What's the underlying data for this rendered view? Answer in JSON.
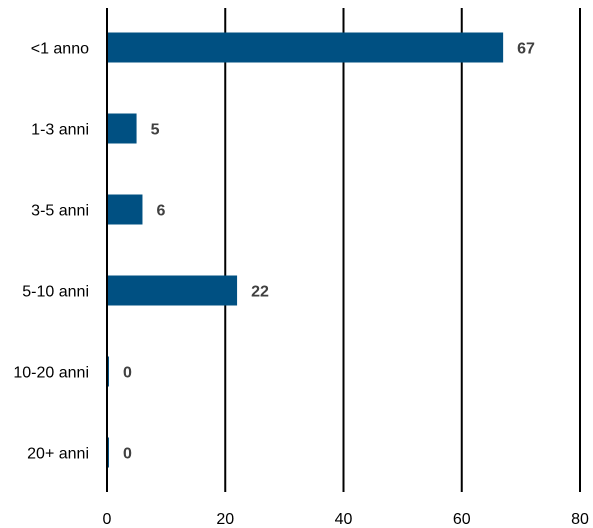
{
  "chart_data": {
    "type": "bar",
    "orientation": "horizontal",
    "categories": [
      "<1 anno",
      "1-3 anni",
      "3-5 anni",
      "5-10 anni",
      "10-20 anni",
      "20+ anni"
    ],
    "values": [
      67,
      5,
      6,
      22,
      0,
      0
    ],
    "data_labels": [
      "67",
      "5",
      "6",
      "22",
      "0",
      "0"
    ],
    "xlim": [
      0,
      80
    ],
    "x_ticks": [
      0,
      20,
      40,
      60,
      80
    ],
    "x_tick_labels": [
      "0",
      "20",
      "40",
      "60",
      "80"
    ],
    "grid": "vertical",
    "legend": "none",
    "bar_color": "#005082",
    "title": "",
    "xlabel": "",
    "ylabel": ""
  }
}
